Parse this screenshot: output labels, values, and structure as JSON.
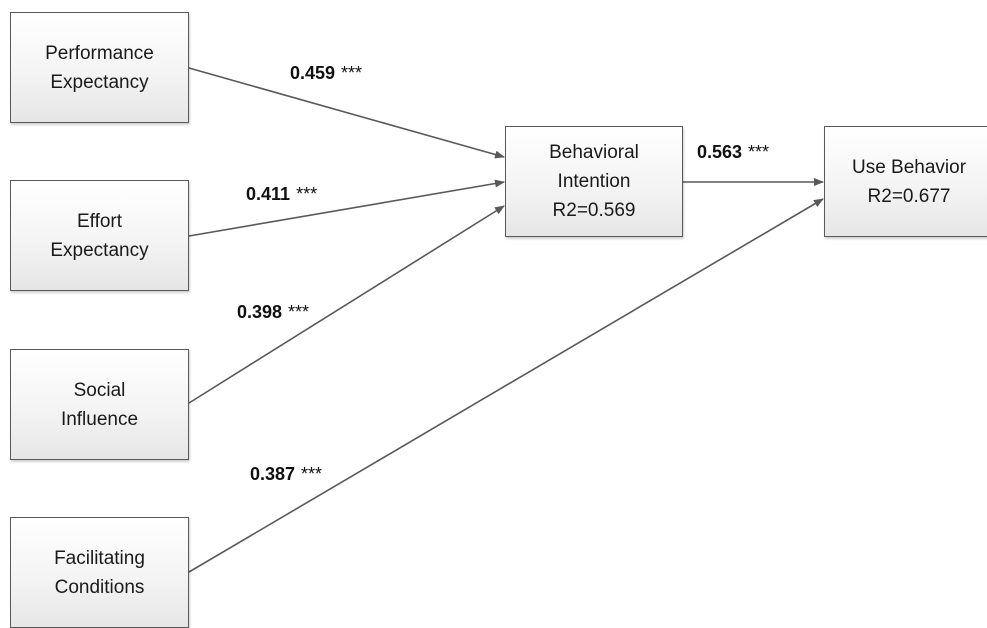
{
  "nodes": {
    "performance_expectancy": {
      "line1": "Performance",
      "line2": "Expectancy"
    },
    "effort_expectancy": {
      "line1": "Effort",
      "line2": "Expectancy"
    },
    "social_influence": {
      "line1": "Social",
      "line2": "Influence"
    },
    "facilitating_conditions": {
      "line1": "Facilitating",
      "line2": "Conditions"
    },
    "behavioral_intention": {
      "line1": "Behavioral",
      "line2": "Intention",
      "line3": "R2=0.569"
    },
    "use_behavior": {
      "line1": "Use Behavior",
      "line2": "R2=0.677"
    }
  },
  "paths": [
    {
      "from": "Performance Expectancy",
      "to": "Behavioral Intention",
      "coefficient": "0.459",
      "significance": "***"
    },
    {
      "from": "Effort Expectancy",
      "to": "Behavioral Intention",
      "coefficient": "0.411",
      "significance": "***"
    },
    {
      "from": "Social Influence",
      "to": "Behavioral Intention",
      "coefficient": "0.398",
      "significance": "***"
    },
    {
      "from": "Facilitating Conditions",
      "to": "Use Behavior",
      "coefficient": "0.387",
      "significance": "***"
    },
    {
      "from": "Behavioral Intention",
      "to": "Use Behavior",
      "coefficient": "0.563",
      "significance": "***"
    }
  ]
}
